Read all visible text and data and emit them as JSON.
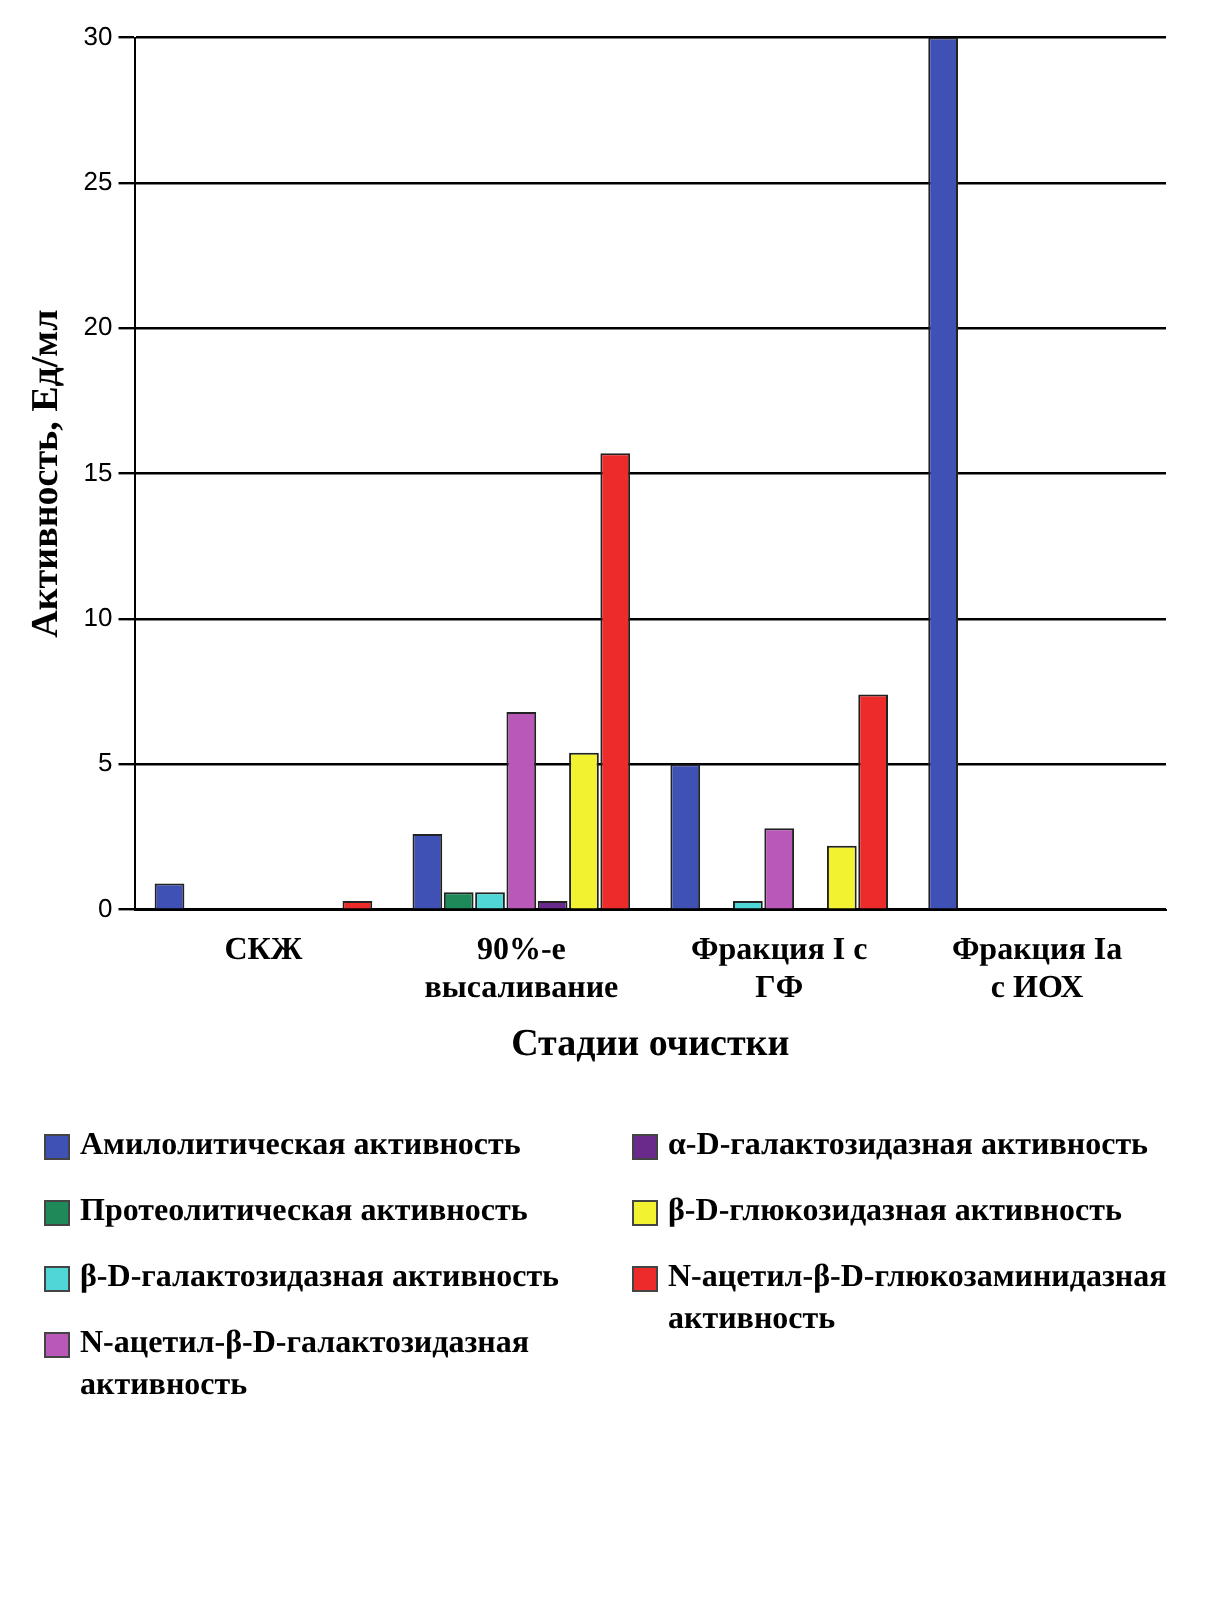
{
  "chart_data": {
    "type": "bar",
    "xlabel": "Стадии очистки",
    "ylabel": "Активность, Ед/мл",
    "categories": [
      "СКЖ",
      "90%-е высаливание",
      "Фракция I с ГФ",
      "Фракция Ia с ИОХ"
    ],
    "series": [
      {
        "name": "Амилолитическая активность",
        "color": "#3f51b5",
        "values": [
          0.9,
          2.6,
          5.0,
          30
        ]
      },
      {
        "name": "Протеолитическая активность",
        "color": "#1e8a5a",
        "values": [
          0,
          0.6,
          0,
          0
        ]
      },
      {
        "name": "β-D-галактозидазная активность",
        "color": "#4fd6d6",
        "values": [
          0,
          0.6,
          0.3,
          0
        ]
      },
      {
        "name": "N-ацетил-β-D-галактозидазная активность",
        "color": "#b958b9",
        "values": [
          0,
          6.8,
          2.8,
          0
        ]
      },
      {
        "name": "α-D-галактозидазная активность",
        "color": "#6a2a8c",
        "values": [
          0,
          0.3,
          null,
          0
        ]
      },
      {
        "name": "β-D-глюкозидазная активность",
        "color": "#f2f230",
        "values": [
          0,
          5.4,
          2.2,
          0
        ]
      },
      {
        "name": "N-ацетил-β-D-глюкозаминидазная активность",
        "color": "#ee2b2b",
        "values": [
          0.3,
          15.7,
          7.4,
          0
        ]
      }
    ],
    "ylim": [
      0,
      30
    ],
    "yticks": [
      0,
      5,
      10,
      15,
      20,
      25,
      30
    ],
    "grid": "y",
    "legend": "bottom"
  }
}
